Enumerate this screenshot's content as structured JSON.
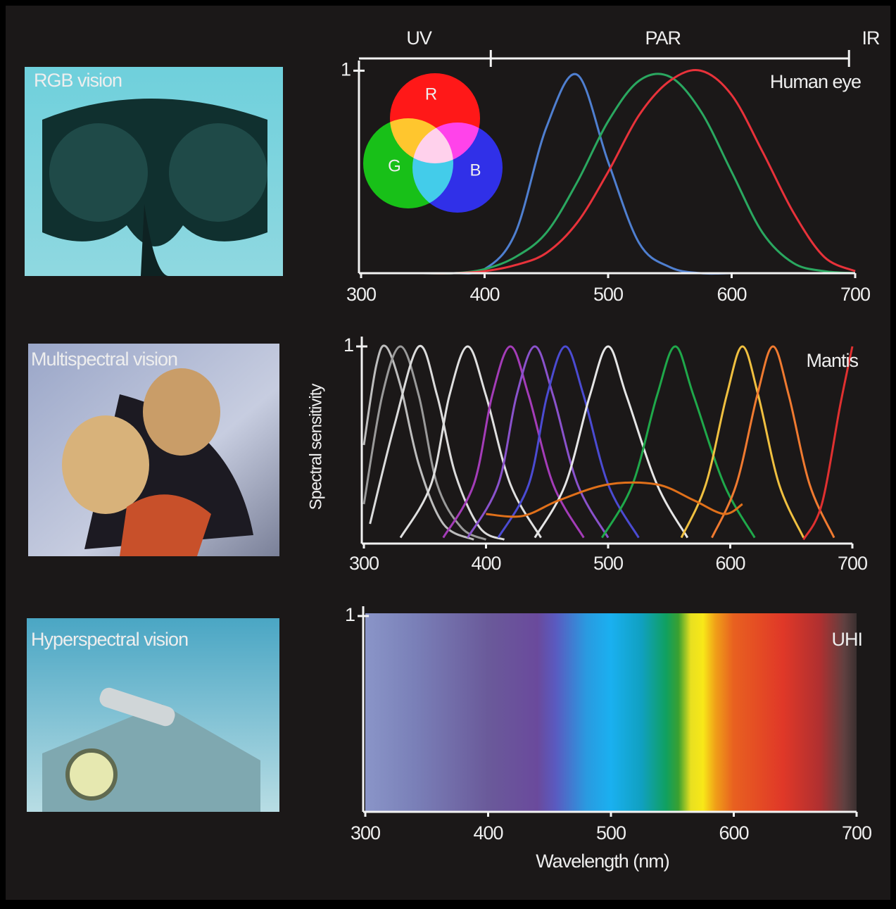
{
  "photos": [
    {
      "label": "RGB vision"
    },
    {
      "label": "Multispectral vision"
    },
    {
      "label": "Hyperspectral vision"
    }
  ],
  "chart_data": [
    {
      "type": "line",
      "title": "Human eye",
      "x": [
        300,
        325,
        350,
        375,
        400,
        425,
        450,
        475,
        500,
        525,
        550,
        575,
        600,
        625,
        650,
        675,
        700
      ],
      "series": [
        {
          "color": "#4f7fd0",
          "values": [
            0,
            0,
            0,
            0,
            0.02,
            0.2,
            0.72,
            0.98,
            0.55,
            0.15,
            0.03,
            0,
            0,
            0,
            0,
            0,
            0
          ]
        },
        {
          "color": "#2aa860",
          "values": [
            0,
            0,
            0,
            0,
            0.02,
            0.08,
            0.2,
            0.45,
            0.75,
            0.95,
            0.97,
            0.8,
            0.5,
            0.2,
            0.05,
            0.01,
            0
          ]
        },
        {
          "color": "#e8323a",
          "values": [
            0,
            0,
            0,
            0,
            0.01,
            0.04,
            0.1,
            0.25,
            0.5,
            0.78,
            0.95,
            1,
            0.88,
            0.6,
            0.3,
            0.08,
            0.01
          ]
        }
      ],
      "xlim": [
        300,
        700
      ],
      "ylim": [
        0,
        1.05
      ],
      "xticks": [
        300,
        400,
        500,
        600,
        700
      ],
      "yticks": [
        1
      ],
      "bands": [
        "UV",
        "PAR",
        "IR"
      ],
      "band_edges": [
        405,
        695
      ],
      "venn_labels": [
        "R",
        "G",
        "B"
      ]
    },
    {
      "type": "line",
      "title": "Mantis",
      "ylabel": "Spectral sensitivity",
      "series": [
        {
          "color": "#bdbdbd",
          "x": [
            300,
            310,
            318,
            330,
            345,
            365,
            390
          ],
          "values": [
            0.5,
            0.9,
            1,
            0.8,
            0.4,
            0.1,
            0.02
          ]
        },
        {
          "color": "#9a9a9a",
          "x": [
            300,
            315,
            330,
            345,
            360,
            380,
            400
          ],
          "values": [
            0.2,
            0.75,
            1,
            0.75,
            0.3,
            0.08,
            0.02
          ]
        },
        {
          "color": "#dcdcdc",
          "x": [
            305,
            325,
            345,
            360,
            375,
            395,
            415
          ],
          "values": [
            0.1,
            0.6,
            1,
            0.75,
            0.35,
            0.08,
            0.02
          ]
        },
        {
          "color": "#e0e0e0",
          "x": [
            330,
            355,
            370,
            385,
            400,
            420,
            445
          ],
          "values": [
            0.03,
            0.3,
            0.75,
            1,
            0.75,
            0.3,
            0.03
          ]
        },
        {
          "color": "#a43cb8",
          "x": [
            365,
            390,
            405,
            420,
            435,
            455,
            480
          ],
          "values": [
            0.03,
            0.3,
            0.75,
            1,
            0.75,
            0.3,
            0.03
          ]
        },
        {
          "color": "#8a52cc",
          "x": [
            385,
            410,
            425,
            440,
            455,
            475,
            500
          ],
          "values": [
            0.03,
            0.3,
            0.75,
            1,
            0.75,
            0.3,
            0.03
          ]
        },
        {
          "color": "#4b4bd2",
          "x": [
            410,
            435,
            450,
            465,
            480,
            500,
            525
          ],
          "values": [
            0.03,
            0.3,
            0.75,
            1,
            0.75,
            0.3,
            0.03
          ]
        },
        {
          "color": "#e6e6e6",
          "x": [
            440,
            465,
            485,
            500,
            515,
            540,
            565
          ],
          "values": [
            0.03,
            0.3,
            0.75,
            1,
            0.75,
            0.3,
            0.03
          ]
        },
        {
          "color": "#1fa84a",
          "x": [
            495,
            520,
            540,
            555,
            570,
            595,
            620
          ],
          "values": [
            0.03,
            0.3,
            0.75,
            1,
            0.75,
            0.3,
            0.03
          ]
        },
        {
          "color": "#f0c040",
          "x": [
            560,
            580,
            597,
            610,
            623,
            640,
            660
          ],
          "values": [
            0.03,
            0.3,
            0.75,
            1,
            0.75,
            0.3,
            0.03
          ]
        },
        {
          "color": "#f07a30",
          "x": [
            585,
            605,
            622,
            635,
            648,
            665,
            685
          ],
          "values": [
            0.03,
            0.3,
            0.75,
            1,
            0.75,
            0.3,
            0.03
          ]
        },
        {
          "color": "#e03030",
          "x": [
            660,
            675,
            690,
            700
          ],
          "values": [
            0.02,
            0.2,
            0.7,
            1
          ]
        },
        {
          "color": "#e0701a",
          "x": [
            400,
            430,
            460,
            500,
            540,
            570,
            595,
            610
          ],
          "values": [
            0.15,
            0.14,
            0.22,
            0.3,
            0.3,
            0.22,
            0.15,
            0.2
          ]
        }
      ],
      "xlim": [
        300,
        700
      ],
      "ylim": [
        0,
        1.05
      ],
      "xticks": [
        300,
        400,
        500,
        600,
        700
      ],
      "yticks": [
        1
      ]
    },
    {
      "type": "spectrum",
      "title": "UHI",
      "xlabel": "Wavelength (nm)",
      "color_stops": [
        {
          "x": 300,
          "color": "#8a95c8"
        },
        {
          "x": 340,
          "color": "#7a80b8"
        },
        {
          "x": 400,
          "color": "#6a5a9a"
        },
        {
          "x": 440,
          "color": "#6a4a9c"
        },
        {
          "x": 455,
          "color": "#5a5ac0"
        },
        {
          "x": 480,
          "color": "#2a9ae0"
        },
        {
          "x": 500,
          "color": "#1ab0f0"
        },
        {
          "x": 525,
          "color": "#10a0c0"
        },
        {
          "x": 545,
          "color": "#10a060"
        },
        {
          "x": 555,
          "color": "#3aa030"
        },
        {
          "x": 565,
          "color": "#e8e020"
        },
        {
          "x": 575,
          "color": "#f8e818"
        },
        {
          "x": 585,
          "color": "#f0a018"
        },
        {
          "x": 600,
          "color": "#e86020"
        },
        {
          "x": 640,
          "color": "#e03828"
        },
        {
          "x": 670,
          "color": "#b03030"
        },
        {
          "x": 690,
          "color": "#604040"
        },
        {
          "x": 700,
          "color": "#3a3030"
        }
      ],
      "xlim": [
        300,
        700
      ],
      "ylim": [
        0,
        1.05
      ],
      "xticks": [
        300,
        400,
        500,
        600,
        700
      ],
      "yticks": [
        1
      ]
    }
  ]
}
